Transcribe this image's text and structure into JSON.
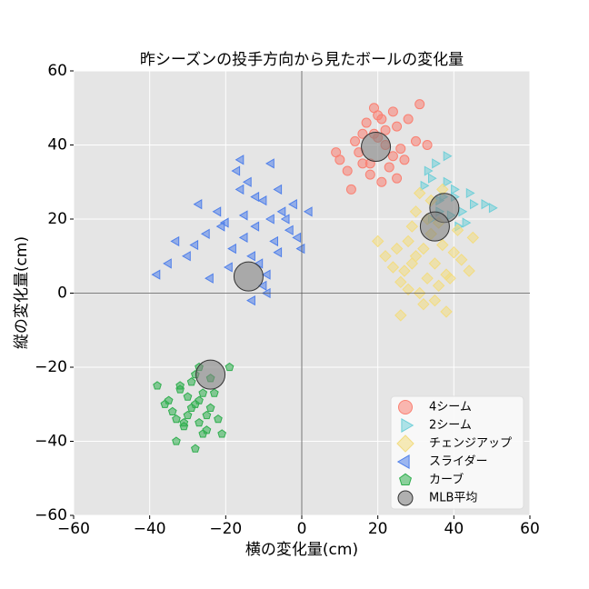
{
  "chart_data": {
    "type": "scatter",
    "title": "昨シーズンの投手方向から見たボールの変化量",
    "x_label": "横の変化量(cm)",
    "y_label": "縦の変化量(cm)",
    "xlim": [
      -60,
      60
    ],
    "ylim": [
      -60,
      60
    ],
    "xticks": [
      {
        "value": -60,
        "label": "−60"
      },
      {
        "value": -40,
        "label": "−40"
      },
      {
        "value": -20,
        "label": "−20"
      },
      0,
      20,
      40,
      60
    ],
    "yticks": [
      {
        "value": -60,
        "label": "−60"
      },
      {
        "value": -40,
        "label": "−40"
      },
      {
        "value": -20,
        "label": "−20"
      },
      0,
      20,
      40,
      60
    ],
    "grid": true,
    "zero_lines": true,
    "legend": "lower right",
    "series": [
      {
        "name": "4シーム",
        "color": "#fa8072",
        "marker": "circle",
        "x": [
          20,
          15,
          25,
          18,
          22,
          12,
          28,
          19,
          24,
          16,
          21,
          10,
          30,
          17,
          23,
          26,
          14,
          20,
          27,
          13,
          22,
          18,
          31,
          9,
          24,
          19,
          16,
          25,
          21,
          33
        ],
        "y": [
          42,
          38,
          45,
          35,
          40,
          33,
          47,
          50,
          37,
          43,
          30,
          36,
          41,
          46,
          34,
          39,
          41,
          48,
          36,
          28,
          44,
          32,
          51,
          38,
          49,
          43,
          35,
          31,
          47,
          40
        ]
      },
      {
        "name": "2シーム",
        "color": "#6fcfd8",
        "marker": "triangle-right",
        "x": [
          36,
          40,
          34,
          42,
          38,
          45,
          33,
          41,
          37,
          44,
          35,
          39,
          48,
          32,
          43,
          38,
          36,
          50,
          34,
          40
        ],
        "y": [
          25,
          28,
          20,
          22,
          30,
          24,
          33,
          18,
          26,
          27,
          35,
          21,
          24,
          29,
          19,
          37,
          22,
          23,
          31,
          26
        ]
      },
      {
        "name": "チェンジアップ",
        "color": "#f3dc80",
        "marker": "diamond",
        "x": [
          30,
          35,
          28,
          38,
          32,
          26,
          40,
          34,
          24,
          36,
          29,
          42,
          31,
          37,
          27,
          33,
          45,
          22,
          39,
          30,
          35,
          28,
          41,
          25,
          34,
          38,
          32,
          20,
          36,
          29,
          44,
          31,
          26,
          37,
          33
        ],
        "y": [
          10,
          8,
          14,
          5,
          12,
          3,
          11,
          16,
          7,
          2,
          18,
          9,
          0,
          13,
          6,
          20,
          15,
          10,
          4,
          22,
          -2,
          1,
          17,
          12,
          25,
          -5,
          -3,
          14,
          19,
          8,
          6,
          27,
          -6,
          28,
          4
        ]
      },
      {
        "name": "スライダー",
        "color": "#5080ea",
        "marker": "triangle-left",
        "x": [
          -12,
          -8,
          -15,
          -5,
          -18,
          -10,
          -3,
          -20,
          -13,
          -7,
          -25,
          -16,
          -2,
          -11,
          -22,
          -6,
          -14,
          -9,
          -28,
          -4,
          -17,
          -1,
          -19,
          -12,
          -30,
          -8,
          -24,
          -15,
          -10,
          -35,
          -6,
          -21,
          -13,
          0,
          -27,
          -16,
          -9,
          -33,
          2,
          -38
        ],
        "y": [
          18,
          20,
          15,
          22,
          12,
          25,
          17,
          19,
          10,
          14,
          16,
          28,
          24,
          8,
          22,
          11,
          30,
          5,
          13,
          20,
          33,
          15,
          7,
          26,
          10,
          35,
          4,
          21,
          2,
          8,
          28,
          18,
          -2,
          12,
          24,
          36,
          0,
          14,
          22,
          5
        ]
      },
      {
        "name": "カーブ",
        "color": "#2fae4e",
        "marker": "pentagon",
        "x": [
          -28,
          -30,
          -25,
          -32,
          -27,
          -24,
          -34,
          -29,
          -26,
          -31,
          -23,
          -35,
          -28,
          -22,
          -33,
          -27,
          -30,
          -25,
          -29,
          -32,
          -21,
          -36,
          -26,
          -28,
          -24,
          -31,
          -19,
          -38,
          -27,
          -33
        ],
        "y": [
          -30,
          -28,
          -33,
          -26,
          -35,
          -31,
          -32,
          -24,
          -38,
          -36,
          -27,
          -29,
          -22,
          -34,
          -40,
          -20,
          -33,
          -37,
          -31,
          -25,
          -38,
          -30,
          -27,
          -42,
          -23,
          -35,
          -20,
          -25,
          -29,
          -34
        ]
      },
      {
        "name": "MLB平均",
        "color": "#808080",
        "marker": "big-circle",
        "x": [
          19.5,
          37.5,
          35,
          -14,
          -24
        ],
        "y": [
          39.5,
          23,
          18,
          4.5,
          -22
        ]
      }
    ]
  }
}
